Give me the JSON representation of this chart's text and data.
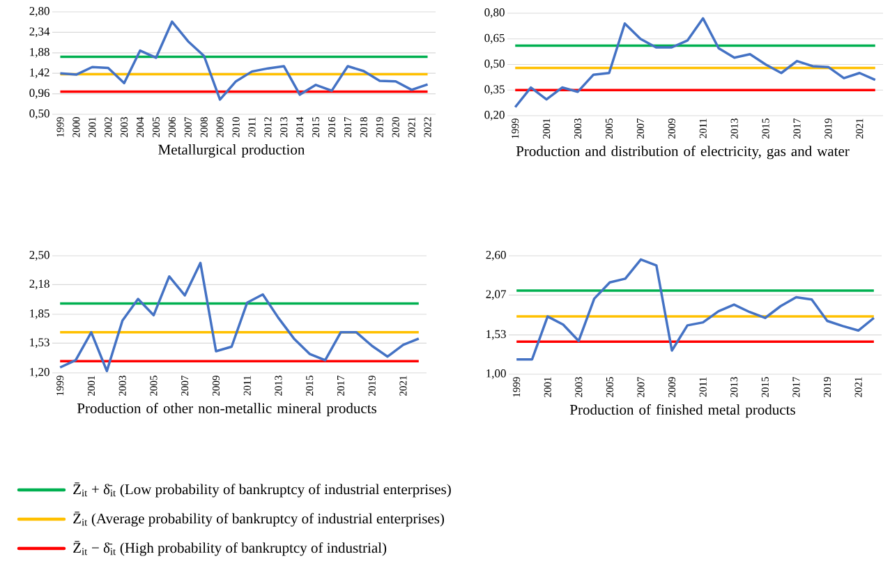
{
  "chart_data": [
    {
      "type": "line",
      "title": "Metallurgical production",
      "categories": [
        "1999",
        "2000",
        "2001",
        "2002",
        "2003",
        "2004",
        "2005",
        "2006",
        "2007",
        "2008",
        "2009",
        "2010",
        "2011",
        "2012",
        "2013",
        "2014",
        "2015",
        "2016",
        "2017",
        "2018",
        "2019",
        "2020",
        "2021",
        "2022"
      ],
      "series": [
        {
          "color": "#4472c4",
          "values": [
            1.42,
            1.39,
            1.56,
            1.54,
            1.2,
            1.93,
            1.77,
            2.58,
            2.14,
            1.81,
            0.83,
            1.24,
            1.46,
            1.53,
            1.58,
            0.94,
            1.16,
            1.03,
            1.58,
            1.47,
            1.25,
            1.24,
            1.05,
            1.17
          ]
        }
      ],
      "ylim": [
        0.5,
        2.8
      ],
      "yticks": [
        {
          "value": 0.5,
          "label": "0,50"
        },
        {
          "value": 0.96,
          "label": "0,96"
        },
        {
          "value": 1.42,
          "label": "1,42"
        },
        {
          "value": 1.88,
          "label": "1,88"
        },
        {
          "value": 2.34,
          "label": "2,34"
        },
        {
          "value": 2.8,
          "label": "2,80"
        }
      ],
      "ref_lines": [
        {
          "axis": "y",
          "value": 1.79,
          "color": "#00b050",
          "label": "Z̄$_{it}$ + δ̄$_{it}$ (Low probability of bankruptcy of industrial enterprises)"
        },
        {
          "axis": "y",
          "value": 1.4,
          "color": "#ffc000",
          "label": "Z̄$_{it}$ (Average probability of bankruptcy of industrial enterprises)"
        },
        {
          "axis": "y",
          "value": 1.01,
          "color": "#ff0000",
          "label": "Z̄$_{it}$ − δ̄$_{it}$ (High probability of bankruptcy of industrial)"
        }
      ],
      "grid": "y",
      "legend": "bottom",
      "marker": "none",
      "line_style": "solid"
    },
    {
      "type": "line",
      "title": "Production and distribution of electricity, gas and water",
      "categories": [
        "1999",
        null,
        "2001",
        null,
        "2003",
        null,
        "2005",
        null,
        "2007",
        null,
        "2009",
        null,
        "2011",
        null,
        "2013",
        null,
        "2015",
        null,
        "2017",
        null,
        "2019",
        null,
        "2021",
        null
      ],
      "series": [
        {
          "color": "#4472c4",
          "values": [
            0.25,
            0.365,
            0.295,
            0.365,
            0.34,
            0.44,
            0.45,
            0.74,
            0.65,
            0.6,
            0.6,
            0.64,
            0.77,
            0.595,
            0.54,
            0.56,
            0.5,
            0.45,
            0.52,
            0.49,
            0.485,
            0.42,
            0.45,
            0.41
          ]
        }
      ],
      "ylim": [
        0.2,
        0.8
      ],
      "yticks": [
        {
          "value": 0.2,
          "label": "0,20"
        },
        {
          "value": 0.35,
          "label": "0,35"
        },
        {
          "value": 0.5,
          "label": "0,50"
        },
        {
          "value": 0.65,
          "label": "0,65"
        },
        {
          "value": 0.8,
          "label": "0,80"
        }
      ],
      "ref_lines": [
        {
          "axis": "y",
          "value": 0.61,
          "color": "#00b050"
        },
        {
          "axis": "y",
          "value": 0.48,
          "color": "#ffc000"
        },
        {
          "axis": "y",
          "value": 0.35,
          "color": "#ff0000"
        }
      ],
      "grid": "y",
      "marker": "none",
      "line_style": "solid"
    },
    {
      "type": "line",
      "title": "Production of other non-metallic mineral products",
      "categories": [
        "1999",
        null,
        "2001",
        null,
        "2003",
        null,
        "2005",
        null,
        "2007",
        null,
        "2009",
        null,
        "2011",
        null,
        "2013",
        null,
        "2015",
        null,
        "2017",
        null,
        "2019",
        null,
        "2021",
        null
      ],
      "series": [
        {
          "color": "#4472c4",
          "values": [
            1.26,
            1.34,
            1.65,
            1.22,
            1.78,
            2.02,
            1.84,
            2.27,
            2.06,
            2.42,
            1.44,
            1.49,
            1.98,
            2.07,
            1.81,
            1.58,
            1.41,
            1.34,
            1.65,
            1.65,
            1.5,
            1.38,
            1.51,
            1.58
          ]
        }
      ],
      "ylim": [
        1.2,
        2.5
      ],
      "yticks": [
        {
          "value": 1.2,
          "label": "1,20"
        },
        {
          "value": 1.53,
          "label": "1,53"
        },
        {
          "value": 1.85,
          "label": "1,85"
        },
        {
          "value": 2.18,
          "label": "2,18"
        },
        {
          "value": 2.5,
          "label": "2,50"
        }
      ],
      "ref_lines": [
        {
          "axis": "y",
          "value": 1.97,
          "color": "#00b050"
        },
        {
          "axis": "y",
          "value": 1.65,
          "color": "#ffc000"
        },
        {
          "axis": "y",
          "value": 1.33,
          "color": "#ff0000"
        }
      ],
      "grid": "y",
      "marker": "none",
      "line_style": "solid"
    },
    {
      "type": "line",
      "title": "Production of finished metal products",
      "categories": [
        "1999",
        null,
        "2001",
        null,
        "2003",
        null,
        "2005",
        null,
        "2007",
        null,
        "2009",
        null,
        "2011",
        null,
        "2013",
        null,
        "2015",
        null,
        "2017",
        null,
        "2019",
        null,
        "2021",
        null
      ],
      "series": [
        {
          "color": "#4472c4",
          "values": [
            1.2,
            1.2,
            1.78,
            1.67,
            1.45,
            2.02,
            2.24,
            2.29,
            2.55,
            2.47,
            1.32,
            1.66,
            1.7,
            1.85,
            1.94,
            1.84,
            1.76,
            1.92,
            2.04,
            2.01,
            1.72,
            1.65,
            1.59,
            1.76
          ]
        }
      ],
      "ylim": [
        1.0,
        2.6
      ],
      "yticks": [
        {
          "value": 1.0,
          "label": "1,00"
        },
        {
          "value": 1.53,
          "label": "1,53"
        },
        {
          "value": 2.07,
          "label": "2,07"
        },
        {
          "value": 2.6,
          "label": "2,60"
        }
      ],
      "ref_lines": [
        {
          "axis": "y",
          "value": 2.13,
          "color": "#00b050"
        },
        {
          "axis": "y",
          "value": 1.78,
          "color": "#ffc000"
        },
        {
          "axis": "y",
          "value": 1.44,
          "color": "#ff0000"
        }
      ],
      "grid": "y",
      "marker": "none",
      "line_style": "solid"
    }
  ]
}
